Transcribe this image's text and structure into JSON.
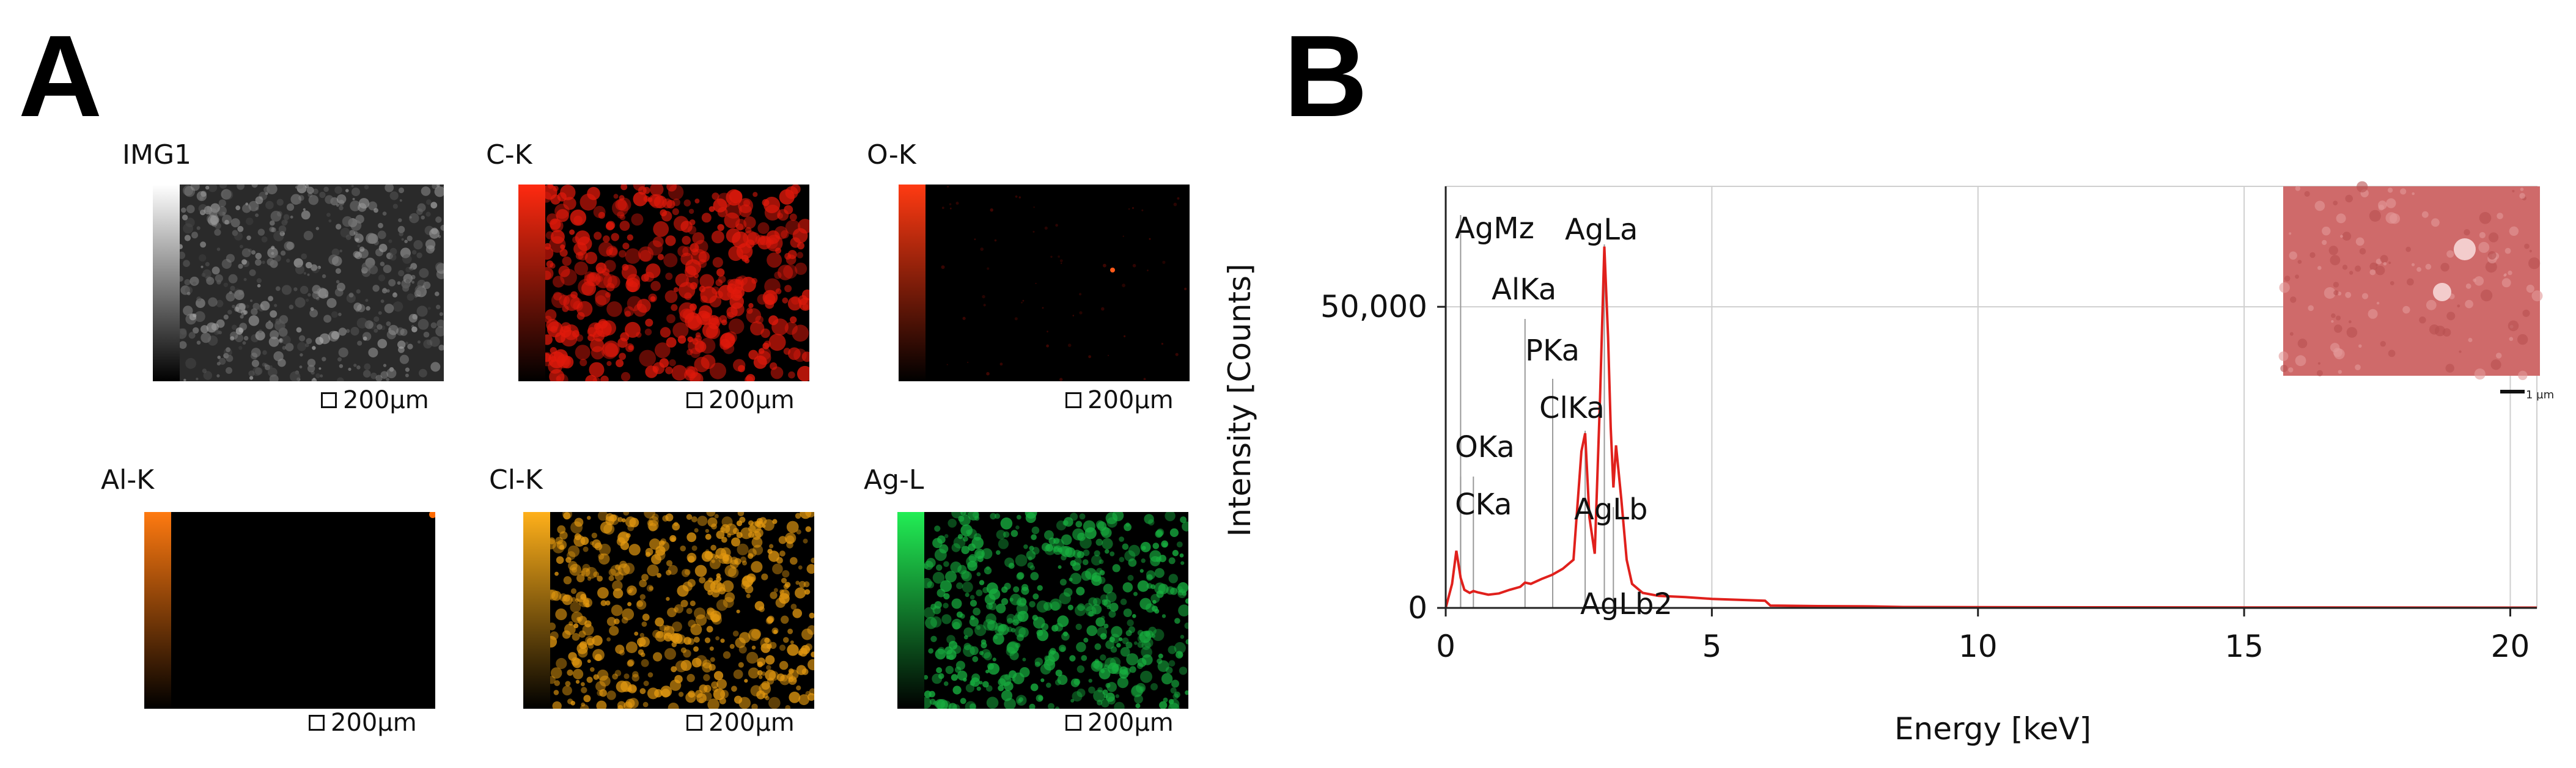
{
  "panel_labels": {
    "a": "A",
    "b": "B"
  },
  "maps": [
    {
      "title": "IMG1",
      "scale": "200µm",
      "bar_top": "#ffffff",
      "bar_bottom": "#000000",
      "tone": "#9a9a9a"
    },
    {
      "title": "C-K",
      "scale": "200µm",
      "bar_top": "#ff2a10",
      "bar_bottom": "#000000",
      "tone": "#e0190b"
    },
    {
      "title": "O-K",
      "scale": "200µm",
      "bar_top": "#ff3a12",
      "bar_bottom": "#000000",
      "tone": "#6a0a04"
    },
    {
      "title": "Al-K",
      "scale": "200µm",
      "bar_top": "#ff7a10",
      "bar_bottom": "#000000",
      "tone": "#ff6a00"
    },
    {
      "title": "Cl-K",
      "scale": "200µm",
      "bar_top": "#ffb01a",
      "bar_bottom": "#000000",
      "tone": "#e59a10"
    },
    {
      "title": "Ag-L",
      "scale": "200µm",
      "bar_top": "#22ee55",
      "bar_bottom": "#000000",
      "tone": "#18b040"
    }
  ],
  "chart_data": {
    "type": "line",
    "xlabel": "Energy [keV]",
    "ylabel": "Intensity [Counts]",
    "xlim": [
      0,
      20.5
    ],
    "ylim": [
      0,
      70000
    ],
    "xticks": [
      0,
      5,
      10,
      15,
      20
    ],
    "xtick_labels": [
      "0",
      "5",
      "10",
      "15",
      "20"
    ],
    "yticks": [
      0,
      50000
    ],
    "ytick_labels": [
      "0",
      "50,000"
    ],
    "grid": true,
    "series": [
      {
        "color": "#e0201c",
        "x": [
          0,
          0.12,
          0.2,
          0.28,
          0.35,
          0.45,
          0.52,
          0.6,
          0.8,
          1.0,
          1.2,
          1.4,
          1.49,
          1.6,
          1.8,
          2.0,
          2.2,
          2.4,
          2.55,
          2.62,
          2.7,
          2.8,
          2.9,
          2.98,
          3.05,
          3.1,
          3.15,
          3.2,
          3.3,
          3.4,
          3.5,
          3.7,
          4.0,
          4.5,
          5.0,
          6.0,
          6.1,
          7.0,
          8.0,
          8.6,
          10.0,
          12.0,
          15.0,
          18.0,
          20.5
        ],
        "y": [
          0,
          4000,
          9500,
          5000,
          3000,
          2500,
          2800,
          2600,
          2200,
          2400,
          3000,
          3500,
          4200,
          4000,
          4800,
          5500,
          6500,
          8000,
          26000,
          29000,
          15000,
          9000,
          35000,
          60000,
          45000,
          30000,
          20000,
          27000,
          18000,
          8000,
          4000,
          2500,
          2000,
          1800,
          1500,
          1200,
          400,
          300,
          250,
          150,
          120,
          100,
          80,
          60,
          50
        ]
      }
    ],
    "peaks": [
      {
        "label": "AgMz",
        "x": 0.28
      },
      {
        "label": "CKa",
        "x": 0.28
      },
      {
        "label": "OKa",
        "x": 0.52
      },
      {
        "label": "AlKa",
        "x": 1.49
      },
      {
        "label": "PKa",
        "x": 2.01
      },
      {
        "label": "ClKa",
        "x": 2.62
      },
      {
        "label": "AgLa",
        "x": 2.98
      },
      {
        "label": "AgLb",
        "x": 3.15
      },
      {
        "label": "AgLb2",
        "x": 3.35
      }
    ],
    "inset": {
      "scale_label": "1 µm"
    }
  }
}
